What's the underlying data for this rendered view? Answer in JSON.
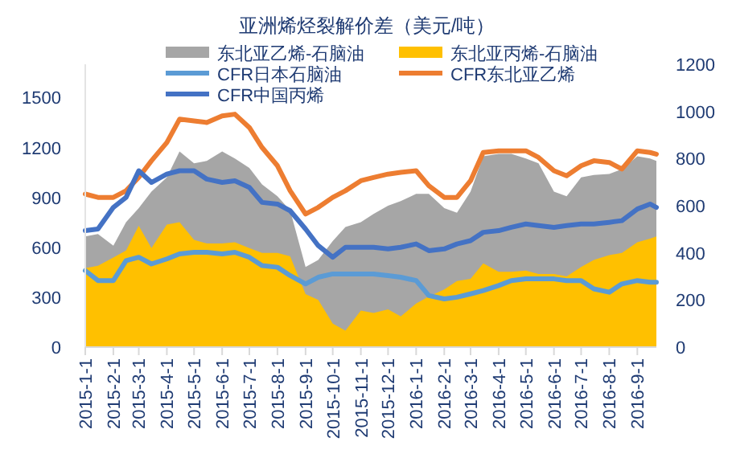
{
  "chart_data": {
    "type": "line",
    "title": "亚洲烯烃裂解价差（美元/吨）",
    "legend": "top",
    "grid": false,
    "x": [
      "2015-01-01",
      "2015-01-15",
      "2015-02-01",
      "2015-02-15",
      "2015-03-01",
      "2015-03-15",
      "2015-04-01",
      "2015-04-15",
      "2015-05-01",
      "2015-05-15",
      "2015-06-01",
      "2015-06-15",
      "2015-07-01",
      "2015-07-15",
      "2015-08-01",
      "2015-08-15",
      "2015-09-01",
      "2015-09-15",
      "2015-10-01",
      "2015-10-15",
      "2015-11-01",
      "2015-11-15",
      "2015-12-01",
      "2015-12-15",
      "2016-01-01",
      "2016-01-15",
      "2016-02-01",
      "2016-02-15",
      "2016-03-01",
      "2016-03-15",
      "2016-04-01",
      "2016-04-15",
      "2016-05-01",
      "2016-05-15",
      "2016-06-01",
      "2016-06-15",
      "2016-07-01",
      "2016-07-15",
      "2016-08-01",
      "2016-08-15",
      "2016-09-01",
      "2016-09-15",
      "2016-09-22"
    ],
    "series": [
      {
        "name": "东北亚乙烯-石脑油",
        "type": "area",
        "axis": "y2",
        "color": "#a6a6a6",
        "values": [
          470,
          480,
          430,
          530,
          590,
          660,
          720,
          830,
          780,
          790,
          830,
          800,
          760,
          690,
          640,
          580,
          340,
          370,
          450,
          510,
          530,
          565,
          600,
          620,
          650,
          650,
          590,
          570,
          660,
          810,
          820,
          820,
          800,
          780,
          660,
          640,
          720,
          730,
          735,
          755,
          810,
          800,
          790
        ]
      },
      {
        "name": "东北亚丙烯-石脑油",
        "type": "area",
        "axis": "y2",
        "color": "#ffc000",
        "values": [
          335,
          345,
          380,
          410,
          515,
          420,
          520,
          530,
          455,
          440,
          440,
          445,
          420,
          400,
          400,
          385,
          225,
          200,
          100,
          70,
          155,
          145,
          160,
          130,
          185,
          215,
          245,
          280,
          290,
          355,
          320,
          320,
          325,
          310,
          310,
          300,
          340,
          370,
          390,
          400,
          445,
          460,
          470
        ]
      },
      {
        "name": "CFR日本石脑油",
        "axis": "y",
        "color": "#5b9bd5",
        "values": [
          460,
          400,
          400,
          520,
          540,
          500,
          530,
          560,
          570,
          570,
          560,
          570,
          540,
          490,
          480,
          430,
          380,
          420,
          440,
          440,
          440,
          440,
          430,
          420,
          400,
          310,
          290,
          300,
          320,
          340,
          370,
          400,
          410,
          410,
          410,
          400,
          400,
          350,
          330,
          380,
          400,
          390,
          390
        ]
      },
      {
        "name": "CFR东北亚乙烯",
        "axis": "y",
        "color": "#ed7d31",
        "values": [
          920,
          900,
          900,
          940,
          1020,
          1120,
          1230,
          1370,
          1360,
          1350,
          1390,
          1400,
          1320,
          1200,
          1090,
          940,
          800,
          840,
          900,
          940,
          1000,
          1020,
          1040,
          1050,
          1060,
          970,
          900,
          900,
          1000,
          1170,
          1180,
          1180,
          1180,
          1140,
          1060,
          1030,
          1090,
          1120,
          1110,
          1070,
          1180,
          1170,
          1160
        ]
      },
      {
        "name": "CFR中国丙烯",
        "axis": "y",
        "color": "#4472c4",
        "values": [
          700,
          710,
          840,
          900,
          1060,
          990,
          1040,
          1060,
          1060,
          1010,
          990,
          1000,
          960,
          870,
          860,
          820,
          710,
          610,
          540,
          600,
          600,
          600,
          590,
          600,
          620,
          580,
          590,
          620,
          640,
          690,
          700,
          720,
          740,
          730,
          720,
          730,
          740,
          740,
          750,
          760,
          830,
          860,
          840
        ]
      }
    ],
    "xlim": [
      "2015-01-01",
      "2016-09-22"
    ],
    "xticks": [
      {
        "value": "2015-01-01",
        "label": "2015-1-1"
      },
      {
        "value": "2015-02-01",
        "label": "2015-2-1"
      },
      {
        "value": "2015-03-01",
        "label": "2015-3-1"
      },
      {
        "value": "2015-04-01",
        "label": "2015-4-1"
      },
      {
        "value": "2015-05-01",
        "label": "2015-5-1"
      },
      {
        "value": "2015-06-01",
        "label": "2015-6-1"
      },
      {
        "value": "2015-07-01",
        "label": "2015-7-1"
      },
      {
        "value": "2015-08-01",
        "label": "2015-8-1"
      },
      {
        "value": "2015-09-01",
        "label": "2015-9-1"
      },
      {
        "value": "2015-10-01",
        "label": "2015-10-1"
      },
      {
        "value": "2015-11-01",
        "label": "2015-11-1"
      },
      {
        "value": "2015-12-01",
        "label": "2015-12-1"
      },
      {
        "value": "2016-01-01",
        "label": "2016-1-1"
      },
      {
        "value": "2016-02-01",
        "label": "2016-2-1"
      },
      {
        "value": "2016-03-01",
        "label": "2016-3-1"
      },
      {
        "value": "2016-04-01",
        "label": "2016-4-1"
      },
      {
        "value": "2016-05-01",
        "label": "2016-5-1"
      },
      {
        "value": "2016-06-01",
        "label": "2016-6-1"
      },
      {
        "value": "2016-07-01",
        "label": "2016-7-1"
      },
      {
        "value": "2016-08-01",
        "label": "2016-8-1"
      },
      {
        "value": "2016-09-01",
        "label": "2016-9-1"
      }
    ],
    "ylim": [
      0,
      1700
    ],
    "yticks": [
      0,
      300,
      600,
      900,
      1200,
      1500
    ],
    "y2lim": [
      0,
      1200
    ],
    "y2ticks": [
      0,
      200,
      400,
      600,
      800,
      1000,
      1200
    ]
  }
}
